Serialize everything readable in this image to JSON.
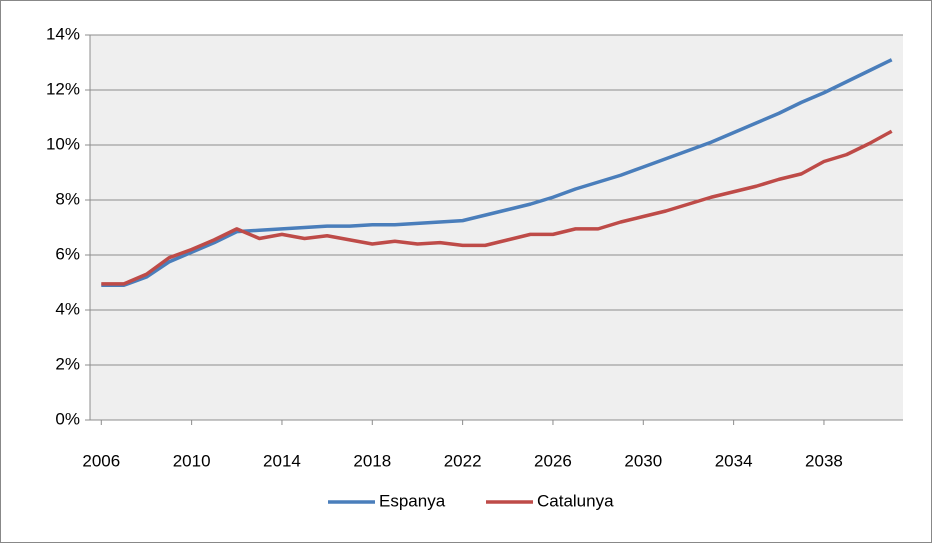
{
  "chart_data": {
    "type": "line",
    "x": [
      2006,
      2007,
      2008,
      2009,
      2010,
      2011,
      2012,
      2013,
      2014,
      2015,
      2016,
      2017,
      2018,
      2019,
      2020,
      2021,
      2022,
      2023,
      2024,
      2025,
      2026,
      2027,
      2028,
      2029,
      2030,
      2031,
      2032,
      2033,
      2034,
      2035,
      2036,
      2037,
      2038,
      2039,
      2040,
      2041
    ],
    "series": [
      {
        "name": "Espanya",
        "color": "#4a7ebb",
        "values": [
          4.9,
          4.9,
          5.2,
          5.75,
          6.1,
          6.45,
          6.85,
          6.9,
          6.95,
          7.0,
          7.05,
          7.05,
          7.1,
          7.1,
          7.15,
          7.2,
          7.25,
          7.45,
          7.65,
          7.85,
          8.1,
          8.4,
          8.65,
          8.9,
          9.2,
          9.5,
          9.8,
          10.1,
          10.45,
          10.8,
          11.15,
          11.55,
          11.9,
          12.3,
          12.7,
          13.1
        ]
      },
      {
        "name": "Catalunya",
        "color": "#be4b48",
        "values": [
          4.95,
          4.95,
          5.3,
          5.9,
          6.2,
          6.55,
          6.95,
          6.6,
          6.75,
          6.6,
          6.7,
          6.55,
          6.4,
          6.5,
          6.4,
          6.45,
          6.35,
          6.35,
          6.55,
          6.75,
          6.75,
          6.95,
          6.95,
          7.2,
          7.4,
          7.6,
          7.85,
          8.1,
          8.3,
          8.5,
          8.75,
          8.95,
          9.4,
          9.65,
          10.05,
          10.5
        ]
      }
    ],
    "xlim": [
      2005.5,
      2041.5
    ],
    "xticks": [
      2006,
      2010,
      2014,
      2018,
      2022,
      2026,
      2030,
      2034,
      2038
    ],
    "ylim": [
      0,
      14
    ],
    "yticks": [
      {
        "value": 0,
        "label": "0%"
      },
      {
        "value": 2,
        "label": "2%"
      },
      {
        "value": 4,
        "label": "4%"
      },
      {
        "value": 6,
        "label": "6%"
      },
      {
        "value": 8,
        "label": "8%"
      },
      {
        "value": 10,
        "label": "10%"
      },
      {
        "value": 12,
        "label": "12%"
      },
      {
        "value": 14,
        "label": "14%"
      }
    ],
    "grid": true,
    "legend": "bottom"
  }
}
